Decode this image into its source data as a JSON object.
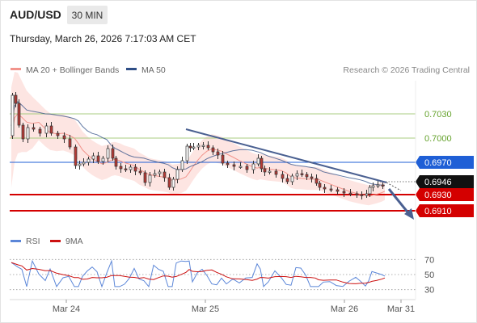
{
  "header": {
    "symbol": "AUD/USD",
    "timeframe": "30 MIN",
    "datetime": "Thursday, March 26, 2026 7:17:03 AM CET"
  },
  "legend": {
    "ma20_bb": "MA 20 + Bollinger Bands",
    "ma50": "MA 50",
    "credit": "Research © 2026 Trading Central",
    "rsi": "RSI",
    "ma9": "9MA"
  },
  "colors": {
    "ma20": "#f2948c",
    "bollinger_fill": "#fde2df",
    "ma50": "#2f4e86",
    "support": "#d40000",
    "resistance": "#1f5fd6",
    "target_level": "#a8cc80",
    "target_text": "#66a32e",
    "current": "#111111",
    "trendline": "#4a6091",
    "rsi": "#5b86d8",
    "rsi_ma": "#cc1111",
    "candle_up": "#ffffff",
    "candle_down": "#b73a36"
  },
  "chart_data": {
    "type": "candlestick",
    "ylim": [
      0.6896,
      0.7071
    ],
    "x_ticks": [
      "Mar 24",
      "Mar 25",
      "Mar 26",
      "Mar 31"
    ],
    "levels": [
      {
        "name": "target-2",
        "value": 0.703,
        "label": "0.7030",
        "kind": "target"
      },
      {
        "name": "target-1",
        "value": 0.7,
        "label": "0.7000",
        "kind": "target"
      },
      {
        "name": "resistance",
        "value": 0.697,
        "label": "0.6970",
        "kind": "resistance"
      },
      {
        "name": "current",
        "value": 0.6946,
        "label": "0.6946",
        "kind": "current"
      },
      {
        "name": "support-1",
        "value": 0.693,
        "label": "0.6930",
        "kind": "support"
      },
      {
        "name": "support-2",
        "value": 0.691,
        "label": "0.6910",
        "kind": "support"
      }
    ],
    "rsi": {
      "levels": [
        70,
        50,
        30
      ],
      "ylim": [
        20,
        80
      ]
    }
  }
}
